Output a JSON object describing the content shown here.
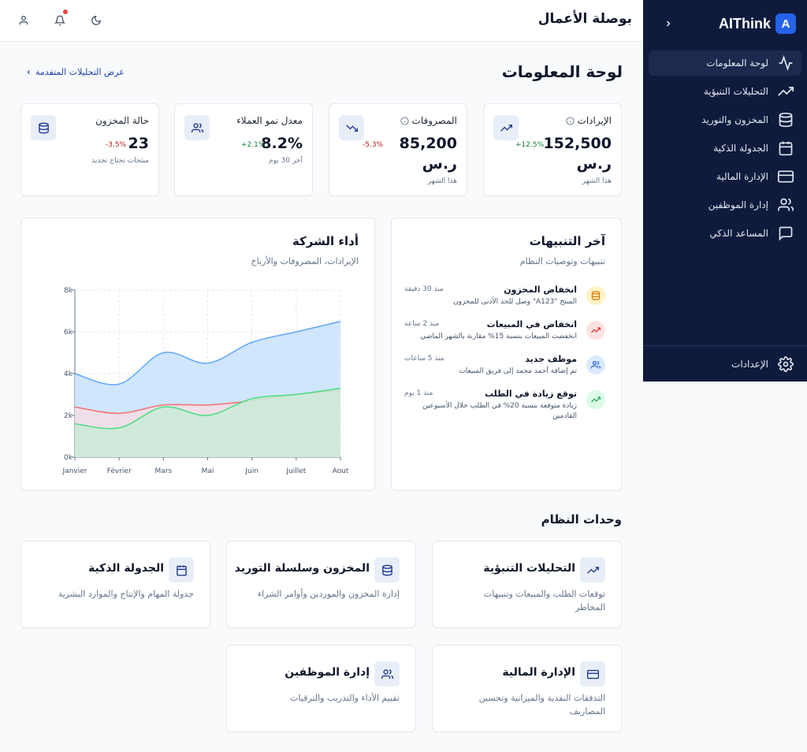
{
  "colors": {
    "sidebar_bg": "#0f1b3d",
    "accent": "#2563eb",
    "revenue": "#60a5fa",
    "expenses": "#f87171",
    "profit": "#4ade80"
  },
  "sidebar": {
    "brand": "AIThink",
    "logo_letter": "A",
    "items": [
      {
        "label": "لوحة المعلومات",
        "icon": "activity-icon",
        "active": true
      },
      {
        "label": "التحليلات التنبؤية",
        "icon": "trending-up-icon"
      },
      {
        "label": "المخزون والتوريد",
        "icon": "database-icon"
      },
      {
        "label": "الجدولة الذكية",
        "icon": "calendar-icon"
      },
      {
        "label": "الإدارة المالية",
        "icon": "credit-card-icon"
      },
      {
        "label": "إدارة الموظفين",
        "icon": "users-icon"
      },
      {
        "label": "المساعد الذكي",
        "icon": "message-square-icon"
      }
    ],
    "settings_label": "الإعدادات"
  },
  "header": {
    "title": "بوصلة الأعمال"
  },
  "main": {
    "page_title": "لوحة المعلومات",
    "advanced_link": "عرض التحليلات المتقدمة"
  },
  "stats": [
    {
      "title": "الإيرادات",
      "value": "152,500 ر.س",
      "change": "+12.5%",
      "sub": "هذا الشهر"
    },
    {
      "title": "المصروفات",
      "value": "85,200 ر.س",
      "change": "-5.3%",
      "sub": "هذا الشهر"
    },
    {
      "title": "معدل نمو العملاء",
      "value": "8.2%",
      "change": "+2.1%",
      "sub": "آخر 30 يوم"
    },
    {
      "title": "حالة المخزون",
      "value": "23",
      "change": "-3.5%",
      "sub": "منتجات تحتاج تجديد"
    }
  ],
  "performance": {
    "title": "أداء الشركة",
    "subtitle": "الإيرادات، المصروفات والأرباح"
  },
  "chart_data": {
    "type": "area",
    "categories": [
      "Janvier",
      "Février",
      "Mars",
      "Mai",
      "Juin",
      "Juillet",
      "Aout"
    ],
    "y_ticks": [
      "0k",
      "2k",
      "4k",
      "6k",
      "8k"
    ],
    "ylim": [
      0,
      8000
    ],
    "grid": true,
    "series": [
      {
        "values": [
          4000,
          3500,
          5000,
          4500,
          5500,
          6000,
          6500
        ]
      },
      {
        "values": [
          2400,
          2100,
          2500,
          2500,
          2700,
          3000,
          3200
        ]
      },
      {
        "values": [
          1600,
          1400,
          2400,
          2000,
          2800,
          3000,
          3300
        ]
      }
    ]
  },
  "alerts_panel": {
    "title": "آخر التنبيهات",
    "subtitle": "تنبيهات وتوصيات النظام",
    "items": [
      {
        "title": "انخفاض المخزون",
        "desc": "المنتج \"A123\" وصل للحد الأدنى للمخزون",
        "time": "منذ 30 دقيقة"
      },
      {
        "title": "انخفاض في المبيعات",
        "desc": "انخفضت المبيعات بنسبة 15% مقارنة بالشهر الماضي",
        "time": "منذ 2 ساعة"
      },
      {
        "title": "موظف جديد",
        "desc": "تم إضافة أحمد محمد إلى فريق المبيعات",
        "time": "منذ 5 ساعات"
      },
      {
        "title": "توقع زيادة في الطلب",
        "desc": "زيادة متوقعة بنسبة 20% في الطلب خلال الأسبوعين القادمين",
        "time": "منذ 1 يوم"
      }
    ]
  },
  "modules": {
    "title": "وحدات النظام",
    "items": [
      {
        "title": "التحليلات التنبؤية",
        "desc": "توقعات الطلب والمبيعات وتنبيهات المخاطر"
      },
      {
        "title": "المخزون وسلسلة التوريد",
        "desc": "إدارة المخزون والموردين وأوامر الشراء"
      },
      {
        "title": "الجدولة الذكية",
        "desc": "جدولة المهام والإنتاج والموارد البشرية"
      },
      {
        "title": "الإدارة المالية",
        "desc": "التدفقات النقدية والميزانية وتحسين المصاريف"
      },
      {
        "title": "إدارة الموظفين",
        "desc": "تقييم الأداء والتدريب والترقيات"
      }
    ]
  }
}
